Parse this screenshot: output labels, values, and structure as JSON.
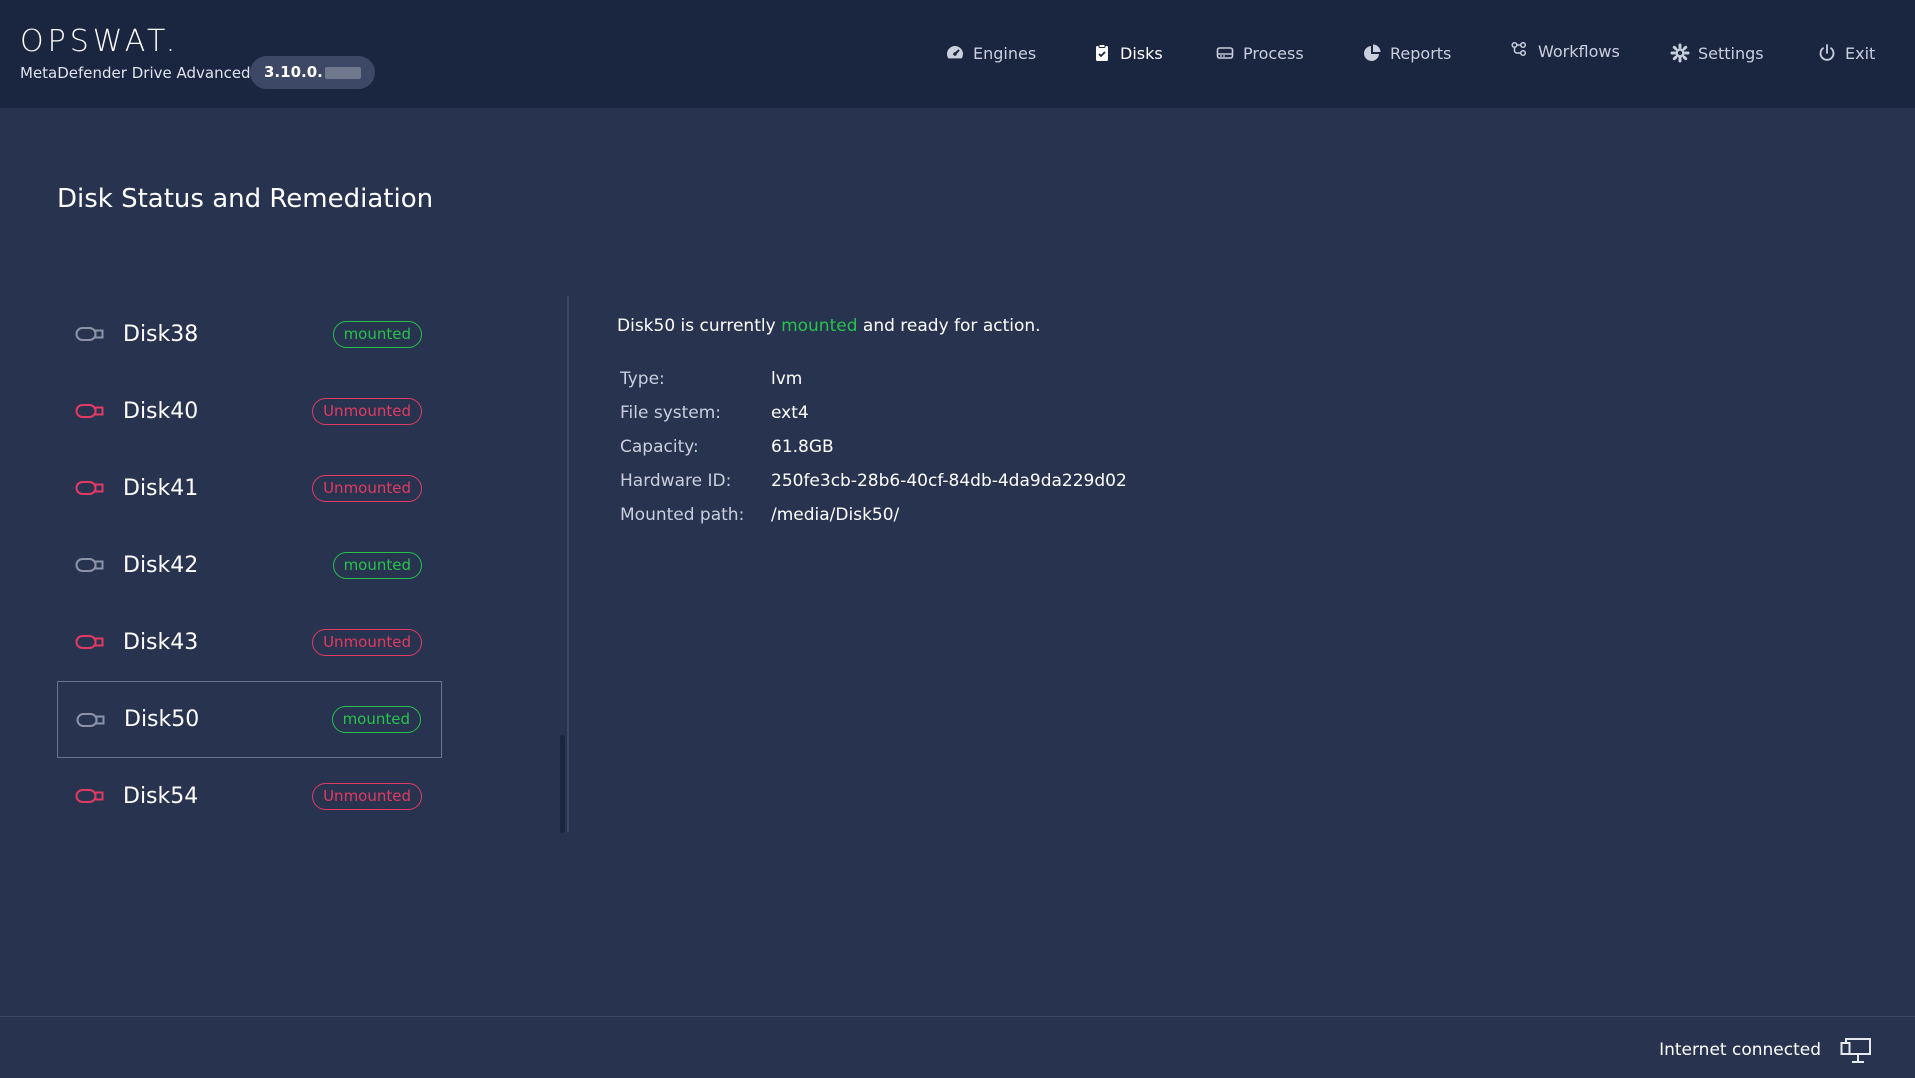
{
  "header": {
    "logo": "OPSWAT.",
    "product": "MetaDefender Drive Advanced",
    "version": "3.10.0."
  },
  "nav": {
    "items": [
      {
        "label": "Engines",
        "icon": "speedometer-icon"
      },
      {
        "label": "Disks",
        "icon": "clipboard-check-icon"
      },
      {
        "label": "Process",
        "icon": "drive-icon"
      },
      {
        "label": "Reports",
        "icon": "pie-chart-icon"
      },
      {
        "label": "Workflows",
        "icon": "workflow-icon"
      },
      {
        "label": "Settings",
        "icon": "gear-icon"
      },
      {
        "label": "Exit",
        "icon": "power-icon"
      }
    ],
    "active": "Disks"
  },
  "page": {
    "title": "Disk Status and Remediation"
  },
  "disks": [
    {
      "name": "Disk38",
      "status": "mounted"
    },
    {
      "name": "Disk40",
      "status": "Unmounted"
    },
    {
      "name": "Disk41",
      "status": "Unmounted"
    },
    {
      "name": "Disk42",
      "status": "mounted"
    },
    {
      "name": "Disk43",
      "status": "Unmounted"
    },
    {
      "name": "Disk50",
      "status": "mounted"
    },
    {
      "name": "Disk54",
      "status": "Unmounted"
    }
  ],
  "selected_disk": "Disk50",
  "detail": {
    "status_prefix": "Disk50 is currently",
    "status_word": "mounted",
    "status_suffix": "and ready for action.",
    "properties": [
      {
        "label": "Type:",
        "value": "lvm"
      },
      {
        "label": "File system:",
        "value": "ext4"
      },
      {
        "label": "Capacity:",
        "value": "61.8GB"
      },
      {
        "label": "Hardware ID:",
        "value": "250fe3cb-28b6-40cf-84db-4da9da229d02"
      },
      {
        "label": "Mounted path:",
        "value": "/media/Disk50/"
      }
    ]
  },
  "footer": {
    "network_status": "Internet connected"
  },
  "colors": {
    "mounted": "#27c24c",
    "unmounted": "#e23a63",
    "background": "#27334f",
    "header": "#1a2540"
  }
}
